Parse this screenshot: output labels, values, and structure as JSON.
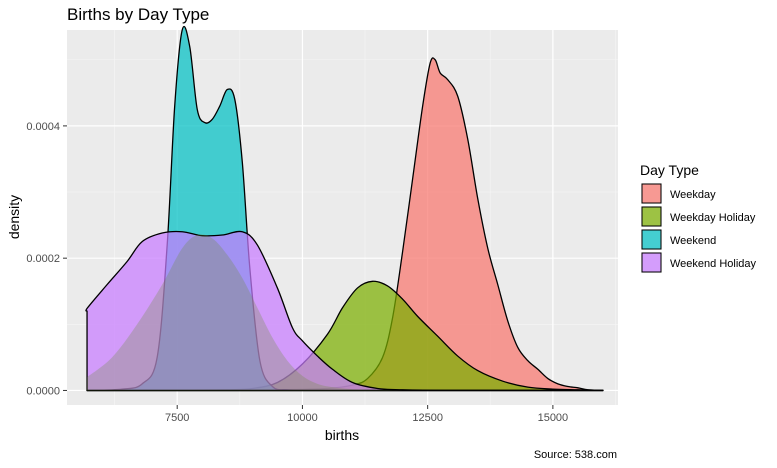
{
  "chart_data": {
    "type": "area",
    "title": "Births by Day Type",
    "xlabel": "births",
    "ylabel": "density",
    "caption": "Source: 538.com",
    "xlim": [
      5300,
      16300
    ],
    "ylim": [
      -2.2e-05,
      0.000545
    ],
    "x_ticks": [
      {
        "value": 7500,
        "label": "7500"
      },
      {
        "value": 10000,
        "label": "10000"
      },
      {
        "value": 12500,
        "label": "12500"
      },
      {
        "value": 15000,
        "label": "15000"
      }
    ],
    "y_ticks": [
      {
        "value": 0,
        "label": "0.0000"
      },
      {
        "value": 0.0002,
        "label": "0.0002"
      },
      {
        "value": 0.0004,
        "label": "0.0004"
      }
    ],
    "grid": true,
    "legend_title": "Day Type",
    "legend_position": "right",
    "series": [
      {
        "name": "Weekday",
        "color": "#F8766D",
        "x": [
          5700,
          8000,
          9500,
          10500,
          11000,
          11300,
          11600,
          11800,
          12000,
          12200,
          12400,
          12550,
          12650,
          12750,
          12900,
          13100,
          13300,
          13500,
          13700,
          13900,
          14100,
          14300,
          14500,
          14700,
          14900,
          15100,
          15300,
          15500,
          15700,
          16000
        ],
        "values": [
          0,
          0,
          1e-06,
          3e-06,
          8e-06,
          1.8e-05,
          5e-05,
          0.00011,
          0.00021,
          0.00032,
          0.00043,
          0.000495,
          0.0005,
          0.00048,
          0.00047,
          0.000445,
          0.00038,
          0.00029,
          0.000215,
          0.00016,
          0.000105,
          6.5e-05,
          4.5e-05,
          3.2e-05,
          1.8e-05,
          1e-05,
          6e-06,
          4e-06,
          1e-06,
          0
        ]
      },
      {
        "name": "Weekday Holiday",
        "color": "#7CAE00",
        "x": [
          5700,
          7000,
          8500,
          9000,
          9500,
          10000,
          10500,
          10800,
          11100,
          11400,
          11700,
          12000,
          12300,
          12700,
          13100,
          13500,
          14000,
          14500,
          15000,
          15500,
          16000
        ],
        "values": [
          0,
          0,
          1e-06,
          3e-06,
          1.2e-05,
          4e-05,
          8.5e-05,
          0.000125,
          0.000155,
          0.000165,
          0.000158,
          0.000138,
          0.000112,
          8.2e-05,
          5.2e-05,
          3e-05,
          1.4e-05,
          5e-06,
          2e-06,
          1e-06,
          0
        ]
      },
      {
        "name": "Weekend",
        "color": "#00BFC4",
        "x": [
          5700,
          6400,
          6800,
          7100,
          7300,
          7450,
          7600,
          7750,
          7900,
          8050,
          8200,
          8350,
          8500,
          8650,
          8800,
          8950,
          9150,
          9400,
          9700,
          10100,
          10600,
          11000,
          11500,
          12000,
          13000,
          14000,
          15000,
          16000
        ],
        "values": [
          0,
          2e-06,
          1e-05,
          5e-05,
          0.00022,
          0.00043,
          0.000545,
          0.00052,
          0.000425,
          0.000405,
          0.00041,
          0.00043,
          0.000455,
          0.00044,
          0.000345,
          0.000185,
          4.5e-05,
          6e-06,
          1e-06,
          0,
          0,
          0,
          0,
          0,
          0,
          0,
          0,
          0
        ]
      },
      {
        "name": "Weekend Holiday",
        "color": "#C77CFF",
        "x": [
          5700,
          5710,
          6100,
          6500,
          6800,
          7200,
          7600,
          8000,
          8400,
          8800,
          9100,
          9500,
          9800,
          10000,
          10300,
          10600,
          11000,
          11500,
          12000,
          13000,
          14000,
          15000,
          16000
        ],
        "values": [
          0.00012,
          0.000125,
          0.00016,
          0.000195,
          0.000225,
          0.000238,
          0.00024,
          0.000234,
          0.000235,
          0.00024,
          0.00022,
          0.000155,
          9.5e-05,
          7.5e-05,
          5.2e-05,
          3.2e-05,
          1.2e-05,
          3e-06,
          1e-06,
          0,
          0,
          0,
          0
        ]
      }
    ],
    "overlay_series": {
      "name": "Weekday Holiday",
      "x": [
        5700,
        6200,
        6700,
        7200,
        7600,
        7900,
        8200,
        8500,
        8800,
        9100,
        9400,
        9700,
        10000,
        10300,
        10600,
        11000,
        11500,
        12000
      ],
      "values": [
        2e-05,
        5e-05,
        0.0001,
        0.00016,
        0.000215,
        0.000235,
        0.00023,
        0.000205,
        0.00017,
        0.000125,
        8e-05,
        4.5e-05,
        2.2e-05,
        1e-05,
        5e-06,
        2e-06,
        1e-06,
        0
      ]
    }
  }
}
